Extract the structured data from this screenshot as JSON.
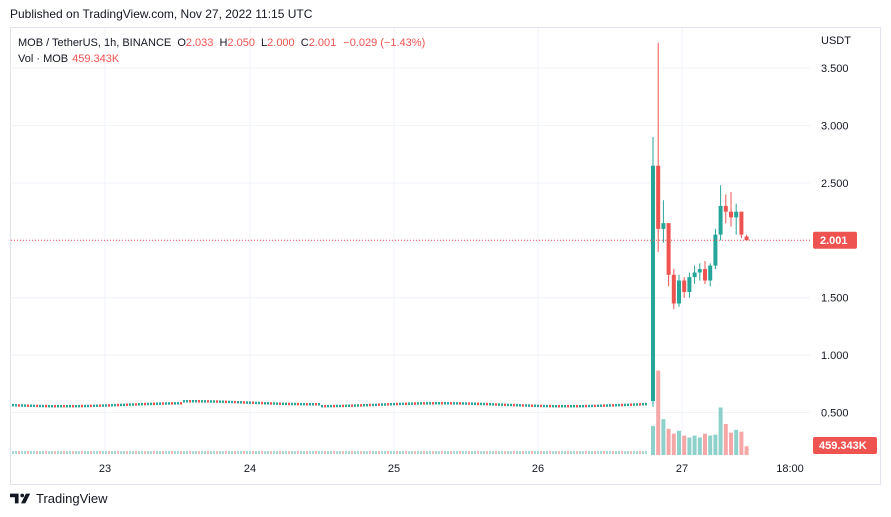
{
  "header": {
    "published": "Published on TradingView.com, Nov 27, 2022 11:15 UTC"
  },
  "legend": {
    "symbol": "MOB / TetherUS, 1h, BINANCE",
    "open_key": "O",
    "open": "2.033",
    "high_key": "H",
    "high": "2.050",
    "low_key": "L",
    "low": "2.000",
    "close_key": "C",
    "close": "2.001",
    "change": "−0.029 (−1.43%)",
    "vol_label": "Vol · MOB",
    "vol_value": "459.343K"
  },
  "price_axis": {
    "unit": "USDT",
    "ticks": [
      "3.500",
      "3.000",
      "2.500",
      "2.000",
      "1.500",
      "1.000",
      "0.500"
    ],
    "current_price_label": "2.001",
    "current_volume_label": "459.343K"
  },
  "time_axis": {
    "ticks": [
      "23",
      "24",
      "25",
      "26",
      "27",
      "18:00"
    ]
  },
  "footer": {
    "brand": "TradingView"
  },
  "colors": {
    "up": "#26a69a",
    "down": "#ef5350",
    "grid": "#f0f3fa",
    "last_price_line": "#ef5350"
  },
  "chart_data": {
    "type": "candlestick",
    "symbol": "MOB / TetherUS",
    "interval": "1h",
    "exchange": "BINANCE",
    "ylabel": "USDT",
    "ylim": [
      0.13,
      3.85
    ],
    "x_ticks": [
      "23",
      "24",
      "25",
      "26",
      "27",
      "18:00"
    ],
    "last_close": 2.001,
    "baseline_price_before_spike": 0.57,
    "candles_after_listing": [
      {
        "o": 0.6,
        "h": 2.9,
        "l": 0.55,
        "c": 2.65
      },
      {
        "o": 2.65,
        "h": 3.72,
        "l": 1.9,
        "c": 2.1
      },
      {
        "o": 2.1,
        "h": 2.35,
        "l": 1.98,
        "c": 2.15
      },
      {
        "o": 2.15,
        "h": 2.15,
        "l": 1.6,
        "c": 1.7
      },
      {
        "o": 1.7,
        "h": 1.75,
        "l": 1.4,
        "c": 1.45
      },
      {
        "o": 1.45,
        "h": 1.7,
        "l": 1.42,
        "c": 1.65
      },
      {
        "o": 1.65,
        "h": 1.68,
        "l": 1.5,
        "c": 1.55
      },
      {
        "o": 1.55,
        "h": 1.72,
        "l": 1.5,
        "c": 1.68
      },
      {
        "o": 1.68,
        "h": 1.78,
        "l": 1.62,
        "c": 1.72
      },
      {
        "o": 1.72,
        "h": 1.8,
        "l": 1.65,
        "c": 1.75
      },
      {
        "o": 1.75,
        "h": 1.82,
        "l": 1.62,
        "c": 1.65
      },
      {
        "o": 1.65,
        "h": 1.8,
        "l": 1.6,
        "c": 1.78
      },
      {
        "o": 1.78,
        "h": 2.1,
        "l": 1.75,
        "c": 2.05
      },
      {
        "o": 2.05,
        "h": 2.48,
        "l": 2.0,
        "c": 2.3
      },
      {
        "o": 2.3,
        "h": 2.4,
        "l": 2.15,
        "c": 2.25
      },
      {
        "o": 2.25,
        "h": 2.42,
        "l": 2.12,
        "c": 2.2
      },
      {
        "o": 2.2,
        "h": 2.32,
        "l": 2.05,
        "c": 2.25
      },
      {
        "o": 2.25,
        "h": 2.25,
        "l": 2.02,
        "c": 2.05
      },
      {
        "o": 2.033,
        "h": 2.05,
        "l": 2.0,
        "c": 2.001
      }
    ],
    "volume_after_listing": [
      0.3,
      0.87,
      0.37,
      0.27,
      0.22,
      0.25,
      0.2,
      0.18,
      0.2,
      0.18,
      0.22,
      0.2,
      0.21,
      0.49,
      0.32,
      0.23,
      0.26,
      0.24,
      0.09
    ]
  }
}
